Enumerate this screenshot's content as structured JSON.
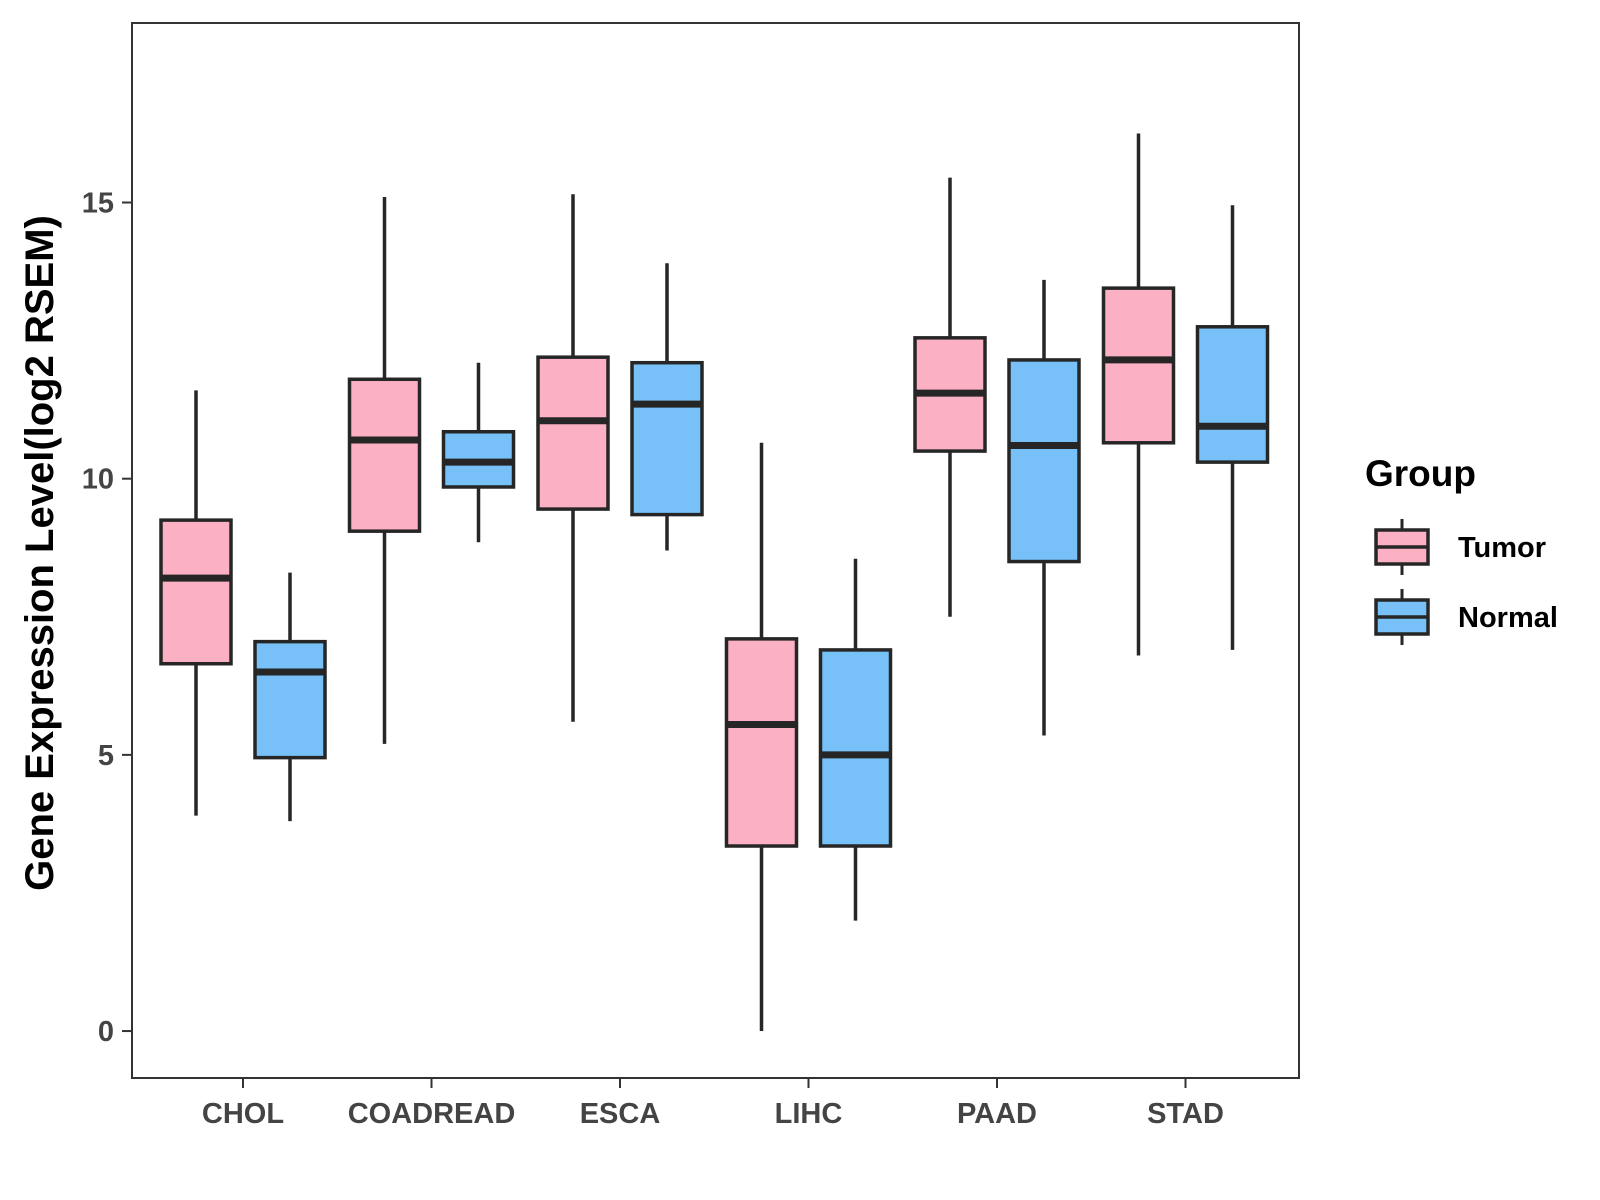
{
  "chart_data": {
    "type": "boxplot",
    "ylabel": "Gene Expression Level(log2 RSEM)",
    "xlabel": "",
    "ylim": [
      -0.85,
      18.25
    ],
    "yticks": [
      0,
      5,
      10,
      15
    ],
    "categories": [
      "CHOL",
      "COADREAD",
      "ESCA",
      "LIHC",
      "PAAD",
      "STAD"
    ],
    "legend": {
      "title": "Group",
      "position": "right",
      "entries": [
        "Tumor",
        "Normal"
      ]
    },
    "colors": {
      "Tumor": "#FBB1C3",
      "Normal": "#78C1F8",
      "outline": "#262626"
    },
    "series": [
      {
        "name": "Tumor",
        "boxes": [
          {
            "min": 3.9,
            "q1": 6.65,
            "median": 8.2,
            "q3": 9.25,
            "max": 11.6
          },
          {
            "min": 5.2,
            "q1": 9.05,
            "median": 10.7,
            "q3": 11.8,
            "max": 15.1
          },
          {
            "min": 5.6,
            "q1": 9.45,
            "median": 11.05,
            "q3": 12.2,
            "max": 15.15
          },
          {
            "min": 0.0,
            "q1": 3.35,
            "median": 5.55,
            "q3": 7.1,
            "max": 10.65
          },
          {
            "min": 7.5,
            "q1": 10.5,
            "median": 11.55,
            "q3": 12.55,
            "max": 15.45
          },
          {
            "min": 6.8,
            "q1": 10.65,
            "median": 12.15,
            "q3": 13.45,
            "max": 16.25
          }
        ]
      },
      {
        "name": "Normal",
        "boxes": [
          {
            "min": 3.8,
            "q1": 4.95,
            "median": 6.5,
            "q3": 7.05,
            "max": 8.3
          },
          {
            "min": 8.85,
            "q1": 9.85,
            "median": 10.3,
            "q3": 10.85,
            "max": 12.1
          },
          {
            "min": 8.7,
            "q1": 9.35,
            "median": 11.35,
            "q3": 12.1,
            "max": 13.9
          },
          {
            "min": 2.0,
            "q1": 3.35,
            "median": 5.0,
            "q3": 6.9,
            "max": 8.55
          },
          {
            "min": 5.35,
            "q1": 8.5,
            "median": 10.6,
            "q3": 12.15,
            "max": 13.6
          },
          {
            "min": 6.9,
            "q1": 10.3,
            "median": 10.95,
            "q3": 12.75,
            "max": 14.95
          }
        ]
      }
    ]
  }
}
